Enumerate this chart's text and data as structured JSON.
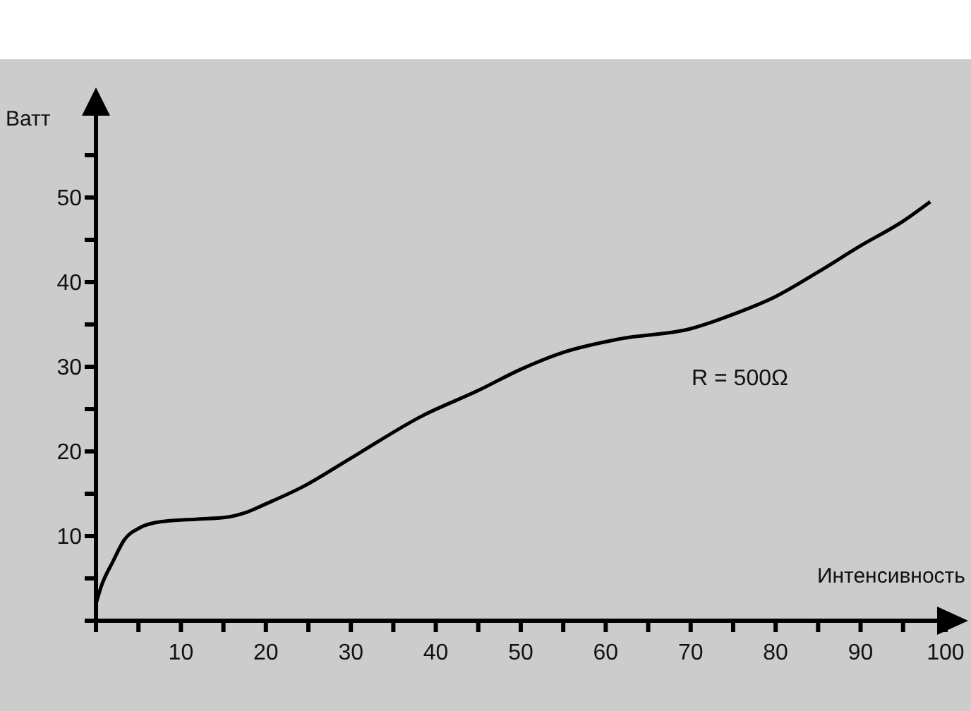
{
  "chart_data": {
    "type": "line",
    "xlabel": "Интенсивность",
    "ylabel": "Ватт",
    "annotations": [
      "R = 500Ω"
    ],
    "xlim": [
      0,
      102
    ],
    "ylim": [
      0,
      60
    ],
    "xticks": [
      {
        "value": 0,
        "label": null
      },
      {
        "value": 5,
        "label": null
      },
      10,
      {
        "value": 15,
        "label": null
      },
      20,
      {
        "value": 25,
        "label": null
      },
      30,
      {
        "value": 35,
        "label": null
      },
      40,
      {
        "value": 45,
        "label": null
      },
      50,
      {
        "value": 55,
        "label": null
      },
      60,
      {
        "value": 65,
        "label": null
      },
      70,
      {
        "value": 75,
        "label": null
      },
      80,
      {
        "value": 85,
        "label": null
      },
      90,
      {
        "value": 95,
        "label": null
      },
      100
    ],
    "yticks": [
      {
        "value": 0,
        "label": null
      },
      {
        "value": 5,
        "label": null
      },
      10,
      {
        "value": 15,
        "label": null
      },
      20,
      {
        "value": 25,
        "label": null
      },
      30,
      {
        "value": 35,
        "label": null
      },
      40,
      {
        "value": 45,
        "label": null
      },
      50,
      {
        "value": 55,
        "label": null
      }
    ],
    "marker": "none",
    "line_style": "solid",
    "series": [
      {
        "color": "#000000",
        "x": [
          0,
          0.6,
          2,
          3.3,
          5.2,
          7.7,
          12,
          15.2,
          17.7,
          20,
          24.3,
          30,
          38.4,
          45,
          50,
          55,
          61.7,
          70,
          75,
          80,
          85,
          90,
          95,
          98.2
        ],
        "values": [
          2,
          4,
          7,
          9.5,
          11,
          11.7,
          12,
          12.2,
          12.8,
          13.8,
          15.8,
          19.2,
          24.2,
          27.2,
          29.7,
          31.7,
          33.3,
          34.5,
          36.2,
          38.3,
          41.2,
          44.3,
          47.2,
          49.5
        ]
      }
    ]
  }
}
